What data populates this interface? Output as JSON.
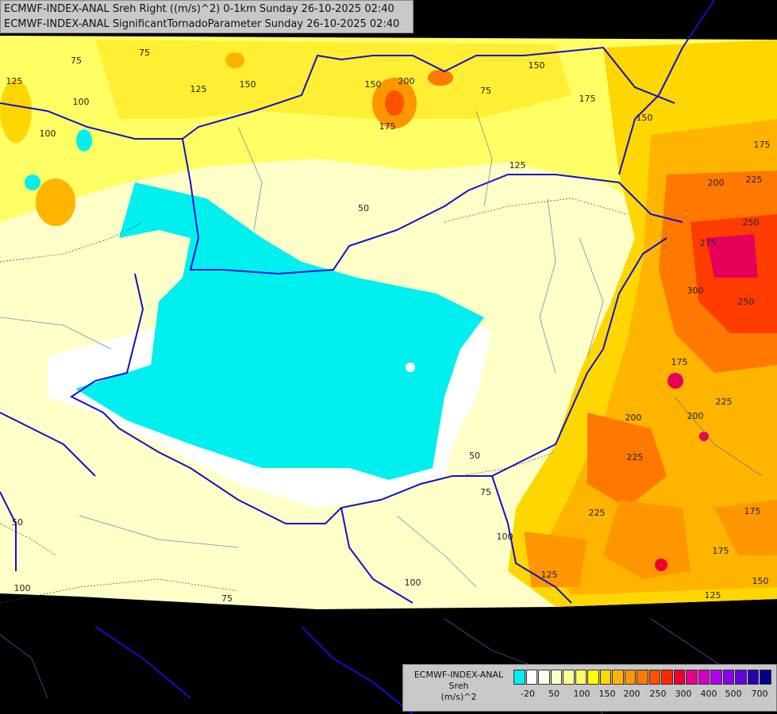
{
  "title": {
    "line1": "ECMWF-INDEX-ANAL Sreh Right ((m/s)^2) 0-1km Sunday 26-10-2025 02:40",
    "line2": "ECMWF-INDEX-ANAL SignificantTornadoParameter Sunday 26-10-2025 02:40"
  },
  "legend": {
    "model": "ECMWF-INDEX-ANAL",
    "variable": "Sreh",
    "unit": "(m/s)^2",
    "colors": [
      "#00f0f0",
      "#ffffff",
      "#fffff0",
      "#ffffc8",
      "#ffff96",
      "#ffff64",
      "#ffff00",
      "#ffd700",
      "#ffb400",
      "#ff9600",
      "#ff7800",
      "#ff5000",
      "#ff2800",
      "#f00032",
      "#e6008c",
      "#d200c8",
      "#b400f0",
      "#8c00f0",
      "#6400dc",
      "#2800b4",
      "#00008c"
    ],
    "ticks": [
      "-20",
      "50",
      "100",
      "150",
      "200",
      "250",
      "300",
      "400",
      "500",
      "700"
    ]
  },
  "map": {
    "background": "#000000",
    "base_color": "#ffffc8",
    "border_color": "#1010d0",
    "contour_labels": [
      "125",
      "75",
      "75",
      "100",
      "125",
      "150",
      "150",
      "200",
      "175",
      "75",
      "150",
      "175",
      "150",
      "175",
      "100",
      "125",
      "200",
      "225",
      "50",
      "250",
      "275",
      "300",
      "250",
      "175",
      "225",
      "200",
      "200",
      "225",
      "50",
      "75",
      "225",
      "175",
      "100",
      "125",
      "175",
      "150",
      "125",
      "100",
      "50",
      "100",
      "75"
    ]
  }
}
